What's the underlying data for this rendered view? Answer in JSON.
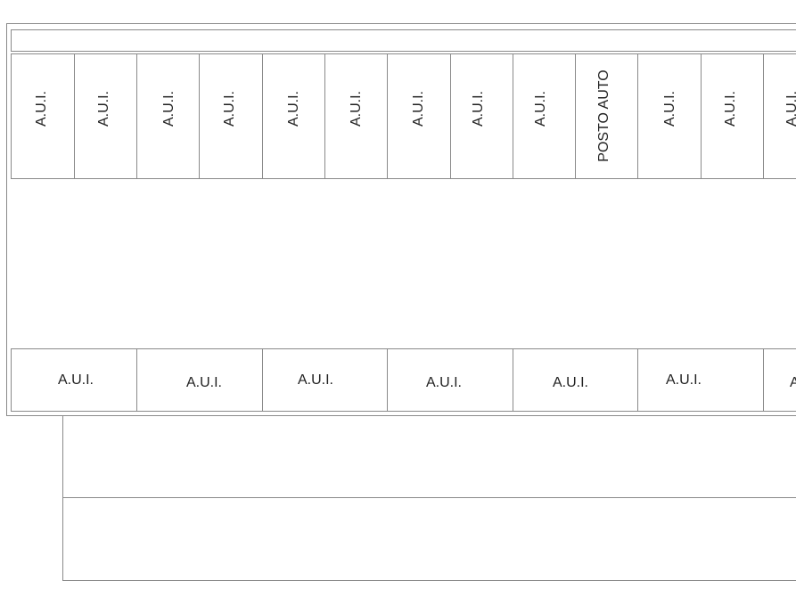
{
  "top_row": [
    "A.U.I.",
    "A.U.I.",
    "A.U.I.",
    "A.U.I.",
    "A.U.I.",
    "A.U.I.",
    "A.U.I.",
    "A.U.I.",
    "A.U.I.",
    "POSTO AUTO",
    "A.U.I.",
    "A.U.I.",
    "A.U.I."
  ],
  "bottom_row": [
    "A.U.I.",
    "A.U.I.",
    "A.U.I.",
    "A.U.I.",
    "A.U.I.",
    "A.U.I.",
    "A.U.I."
  ]
}
